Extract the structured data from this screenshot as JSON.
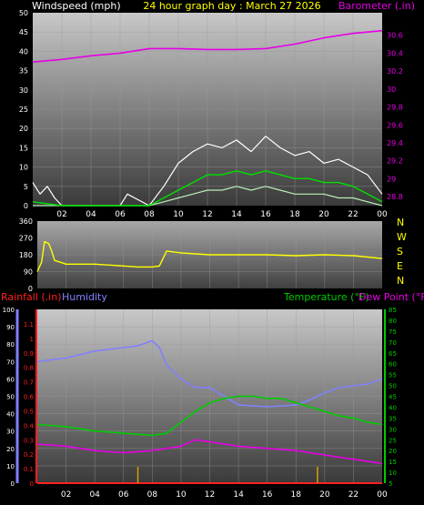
{
  "header": {
    "windspeed_label": "Windspeed (mph)",
    "title": "24 hour graph day : March 27 2026",
    "barometer_label": "Barometer (.in)"
  },
  "colors": {
    "windspeed_label": "#ffffff",
    "title": "#ffff00",
    "barometer": "#e600e6",
    "wind_gust": "#ffffff",
    "wind_avg": "#00e000",
    "wind_low": "#b8f0b8",
    "wind_dir": "#ffff00",
    "rainfall": "#ff2020",
    "humidity": "#8080ff",
    "temperature": "#00cc00",
    "dew_point": "#e600e6"
  },
  "compass": [
    "N",
    "W",
    "S",
    "E",
    "N"
  ],
  "bottom_labels": {
    "rainfall": "Rainfall (.in)",
    "humidity": "Humidity",
    "temperature": "Temperature (°F)",
    "dew_point": "Dew Point (°F)"
  },
  "x_ticks": [
    "02",
    "04",
    "06",
    "08",
    "10",
    "12",
    "14",
    "16",
    "18",
    "20",
    "22",
    "00"
  ],
  "chart_data": [
    {
      "type": "line",
      "name": "wind-barometer",
      "x_range_hours": [
        0,
        24
      ],
      "y_left": {
        "label": "Windspeed (mph)",
        "range": [
          0,
          50
        ],
        "ticks": [
          "0",
          "5",
          "10",
          "15",
          "20",
          "25",
          "30",
          "35",
          "40",
          "45",
          "50"
        ]
      },
      "y_right": {
        "label": "Barometer (.in)",
        "range": [
          28.7,
          30.85
        ],
        "ticks": [
          "28.8",
          "29",
          "29.2",
          "29.4",
          "29.6",
          "29.8",
          "30",
          "30.2",
          "30.4",
          "30.6"
        ]
      },
      "barometer": {
        "x": [
          0,
          2,
          4,
          6,
          8,
          10,
          12,
          14,
          16,
          18,
          20,
          22,
          24
        ],
        "y": [
          30.3,
          30.33,
          30.37,
          30.4,
          30.45,
          30.45,
          30.44,
          30.44,
          30.45,
          30.5,
          30.57,
          30.62,
          30.65
        ]
      },
      "wind_gust": {
        "x": [
          0,
          0.5,
          1,
          1.5,
          2,
          4,
          6,
          6.5,
          8,
          9,
          10,
          11,
          12,
          13,
          14,
          15,
          16,
          17,
          18,
          19,
          20,
          21,
          22,
          23,
          24
        ],
        "y": [
          6,
          3,
          5,
          2,
          0,
          0,
          0,
          3,
          0,
          5,
          11,
          14,
          16,
          15,
          17,
          14,
          18,
          15,
          13,
          14,
          11,
          12,
          10,
          8,
          3
        ]
      },
      "wind_avg": {
        "x": [
          0,
          2,
          4,
          6,
          8,
          9,
          10,
          11,
          12,
          13,
          14,
          15,
          16,
          17,
          18,
          19,
          20,
          21,
          22,
          23,
          24
        ],
        "y": [
          1,
          0,
          0,
          0,
          0,
          2,
          4,
          6,
          8,
          8,
          9,
          8,
          9,
          8,
          7,
          7,
          6,
          6,
          5,
          3,
          1
        ]
      },
      "wind_low": {
        "x": [
          0,
          8,
          9,
          10,
          11,
          12,
          13,
          14,
          15,
          16,
          17,
          18,
          19,
          20,
          21,
          22,
          23,
          24
        ],
        "y": [
          0,
          0,
          1,
          2,
          3,
          4,
          4,
          5,
          4,
          5,
          4,
          3,
          3,
          3,
          2,
          2,
          1,
          0
        ]
      }
    },
    {
      "type": "line",
      "name": "wind-direction",
      "x_range_hours": [
        0,
        24
      ],
      "y": {
        "range": [
          0,
          360
        ],
        "ticks": [
          "0",
          "90",
          "180",
          "270",
          "360"
        ]
      },
      "direction": {
        "x": [
          0,
          0.3,
          0.5,
          0.8,
          1,
          1.2,
          1.6,
          2,
          4,
          6,
          7,
          8,
          8.5,
          9,
          10,
          12,
          14,
          16,
          18,
          20,
          22,
          24
        ],
        "y": [
          90,
          140,
          250,
          240,
          200,
          150,
          140,
          130,
          130,
          120,
          115,
          115,
          120,
          200,
          190,
          180,
          180,
          180,
          175,
          180,
          175,
          160
        ]
      }
    },
    {
      "type": "line",
      "name": "temperature-humidity",
      "x_range_hours": [
        0,
        24
      ],
      "y_humidity": {
        "label": "Humidity",
        "range": [
          0,
          100
        ],
        "ticks": [
          "0",
          "10",
          "20",
          "30",
          "40",
          "50",
          "60",
          "70",
          "80",
          "90",
          "100"
        ]
      },
      "y_rainfall": {
        "label": "Rainfall (.in)",
        "range": [
          0,
          1.2
        ],
        "ticks": [
          "0",
          "0.1",
          "0.2",
          "0.3",
          "0.4",
          "0.5",
          "0.6",
          "0.7",
          "0.8",
          "0.9",
          "1",
          "1.1"
        ]
      },
      "y_temperature": {
        "label": "Temperature (°F)",
        "range": [
          5,
          85
        ],
        "ticks": [
          "5",
          "10",
          "15",
          "20",
          "25",
          "30",
          "35",
          "40",
          "45",
          "50",
          "55",
          "60",
          "65",
          "70",
          "75",
          "80",
          "85"
        ]
      },
      "humidity": {
        "x": [
          0,
          2,
          4,
          6,
          7,
          8,
          8.5,
          9,
          10,
          11,
          12,
          13,
          14,
          16,
          18,
          19,
          20,
          21,
          22,
          23,
          24
        ],
        "y": [
          70,
          72,
          76,
          78,
          79,
          82,
          78,
          68,
          60,
          55,
          55,
          50,
          45,
          44,
          45,
          48,
          52,
          55,
          56,
          57,
          60
        ]
      },
      "temperature": {
        "x": [
          0,
          2,
          4,
          6,
          8,
          9,
          10,
          11,
          12,
          13,
          14,
          15,
          16,
          17,
          18,
          19,
          20,
          21,
          22,
          23,
          24
        ],
        "y": [
          32,
          31,
          29,
          28,
          27,
          28,
          33,
          38,
          42,
          44,
          45,
          45,
          44,
          44,
          42,
          40,
          38,
          36,
          35,
          33,
          32
        ]
      },
      "dew_point": {
        "x": [
          0,
          2,
          4,
          6,
          8,
          9,
          10,
          11,
          12,
          13,
          14,
          16,
          18,
          20,
          21,
          22,
          23,
          24
        ],
        "y": [
          23,
          22,
          20,
          19,
          20,
          21,
          22,
          25,
          24,
          23,
          22,
          21,
          20,
          18,
          17,
          16,
          15,
          14
        ]
      },
      "rainfall": {
        "x": [
          0,
          24
        ],
        "y": [
          0,
          0
        ]
      },
      "rain_markers_hours": [
        7,
        19.5
      ]
    }
  ]
}
